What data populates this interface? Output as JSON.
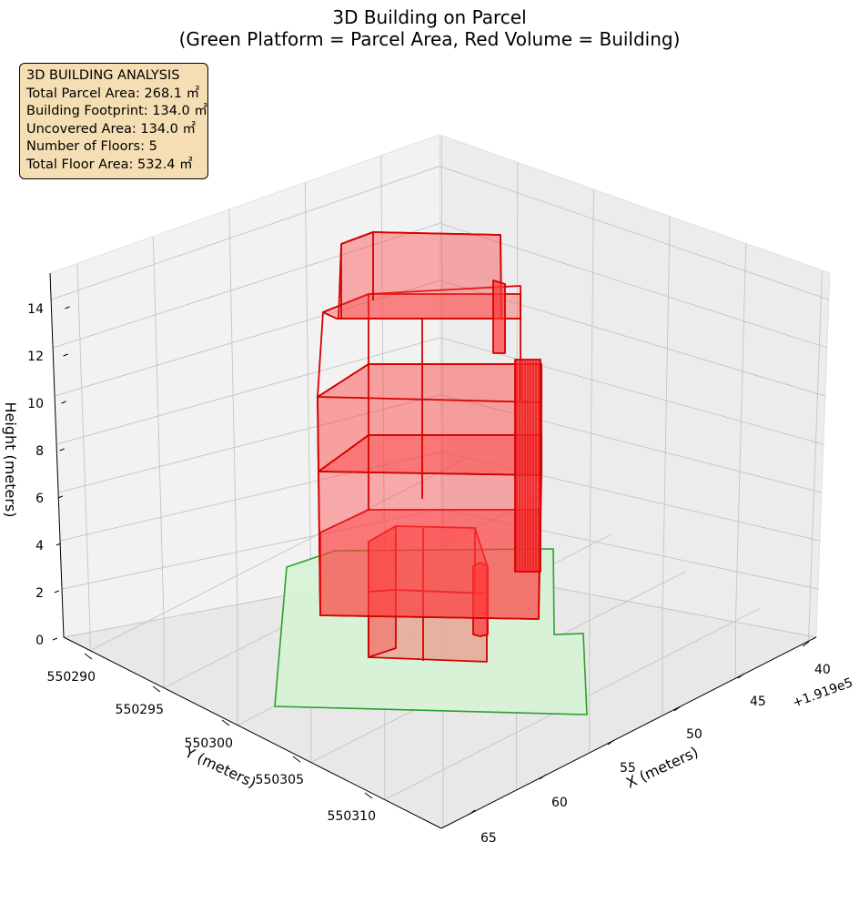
{
  "chart_data": {
    "type": "3d_polygons",
    "title": "3D Building on Parcel",
    "subtitle": "(Green Platform = Parcel Area, Red Volume = Building)",
    "xlabel": "X (meters)",
    "ylabel": "Y (meters)",
    "zlabel": "Height (meters)",
    "x_offset_label": "+1.919e5",
    "x_ticks": [
      "40",
      "45",
      "50",
      "55",
      "60",
      "65"
    ],
    "y_ticks": [
      "550290",
      "550295",
      "550300",
      "550305",
      "550310"
    ],
    "z_ticks": [
      "0",
      "2",
      "4",
      "6",
      "8",
      "10",
      "12",
      "14"
    ],
    "colors": {
      "parcel_fill": "#d6f2d6",
      "parcel_edge": "#2ca02c",
      "building_fill": "#ff3a3a",
      "building_edge": "#d40000"
    },
    "info_box": {
      "title": "3D BUILDING ANALYSIS",
      "lines": [
        "Total Parcel Area: 268.1 ㎡",
        "Building Footprint: 134.0 ㎡",
        "Uncovered Area: 134.0 ㎡",
        "Number of Floors: 5",
        "Total Floor Area: 532.4 ㎡"
      ]
    }
  }
}
